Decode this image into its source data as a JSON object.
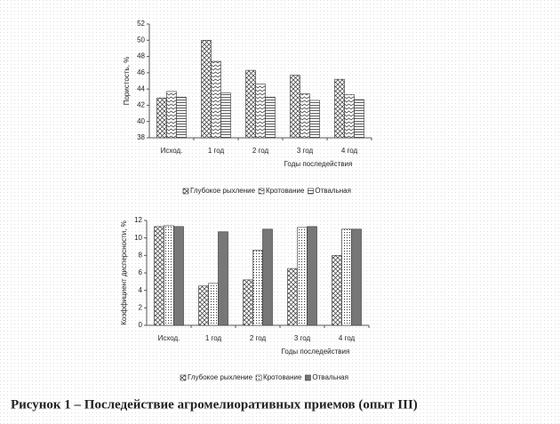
{
  "chart_data": [
    {
      "type": "bar",
      "y_label": "Пористость, %",
      "x_label": "Годы последействия",
      "categories": [
        "Исход.",
        "1 год",
        "2 год",
        "3 год",
        "4 год"
      ],
      "series": [
        {
          "name": "Глубокое рыхление",
          "color": "#333333",
          "pattern": "crosshatch",
          "values": [
            42.9,
            50.0,
            46.3,
            45.7,
            45.2
          ]
        },
        {
          "name": "Кротование",
          "color": "#333333",
          "pattern": "zigzag",
          "values": [
            43.7,
            47.4,
            44.6,
            43.4,
            43.3
          ]
        },
        {
          "name": "Отвальная",
          "color": "#333333",
          "pattern": "hlines",
          "values": [
            43.0,
            43.5,
            43.0,
            42.6,
            42.7
          ]
        }
      ],
      "ylim": [
        38,
        52
      ],
      "yticks": [
        38,
        40,
        42,
        44,
        46,
        48,
        50,
        52
      ],
      "legend": "bottom"
    },
    {
      "type": "bar",
      "y_label": "Коэффициент дисперсности, %",
      "x_label": "Годы последействия",
      "categories": [
        "Исход.",
        "1 год",
        "2 год",
        "3 год",
        "4 год"
      ],
      "series": [
        {
          "name": "Глубокое рыхление",
          "color": "#333333",
          "pattern": "crosshatch",
          "values": [
            11.3,
            4.5,
            5.2,
            6.5,
            8.0
          ]
        },
        {
          "name": "Кротование",
          "color": "#333333",
          "pattern": "dots",
          "values": [
            11.4,
            4.8,
            8.6,
            11.2,
            11.0
          ]
        },
        {
          "name": "Отвальная",
          "color": "#777777",
          "pattern": "solid",
          "values": [
            11.3,
            10.7,
            11.0,
            11.3,
            11.0
          ]
        }
      ],
      "ylim": [
        0,
        12
      ],
      "yticks": [
        0,
        2,
        4,
        6,
        8,
        10,
        12
      ],
      "legend": "bottom"
    }
  ],
  "caption": "Рисунок 1 – Последействие агромелиоративных приемов (опыт III)"
}
